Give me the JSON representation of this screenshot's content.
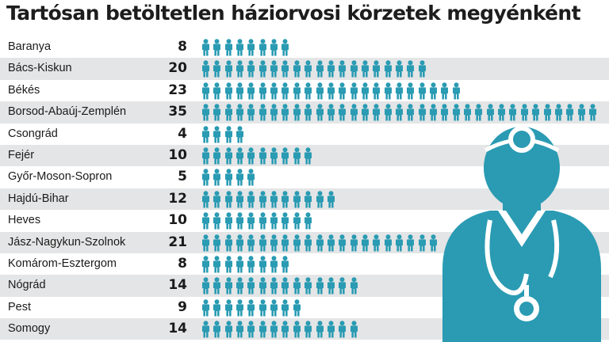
{
  "title": "Tartósan betöltetlen háziorvosi körzetek megyénként",
  "colors": {
    "icon": "#2a9bb3",
    "doctor": "#2a9bb3",
    "row_shade": "#e4e5e6"
  },
  "icons": {
    "unit": "person-icon",
    "illustration": "doctor-icon"
  },
  "chart_data": {
    "type": "bar",
    "title": "Tartósan betöltetlen háziorvosi körzetek megyénként",
    "categories": [
      "Baranya",
      "Bács-Kiskun",
      "Békés",
      "Borsod-Abaúj-Zemplén",
      "Csongrád",
      "Fejér",
      "Győr-Moson-Sopron",
      "Hajdú-Bihar",
      "Heves",
      "Jász-Nagykun-Szolnok",
      "Komárom-Esztergom",
      "Nógrád",
      "Pest",
      "Somogy"
    ],
    "values": [
      8,
      20,
      23,
      35,
      4,
      10,
      5,
      12,
      10,
      21,
      8,
      14,
      9,
      14
    ],
    "xlabel": "",
    "ylabel": ""
  }
}
